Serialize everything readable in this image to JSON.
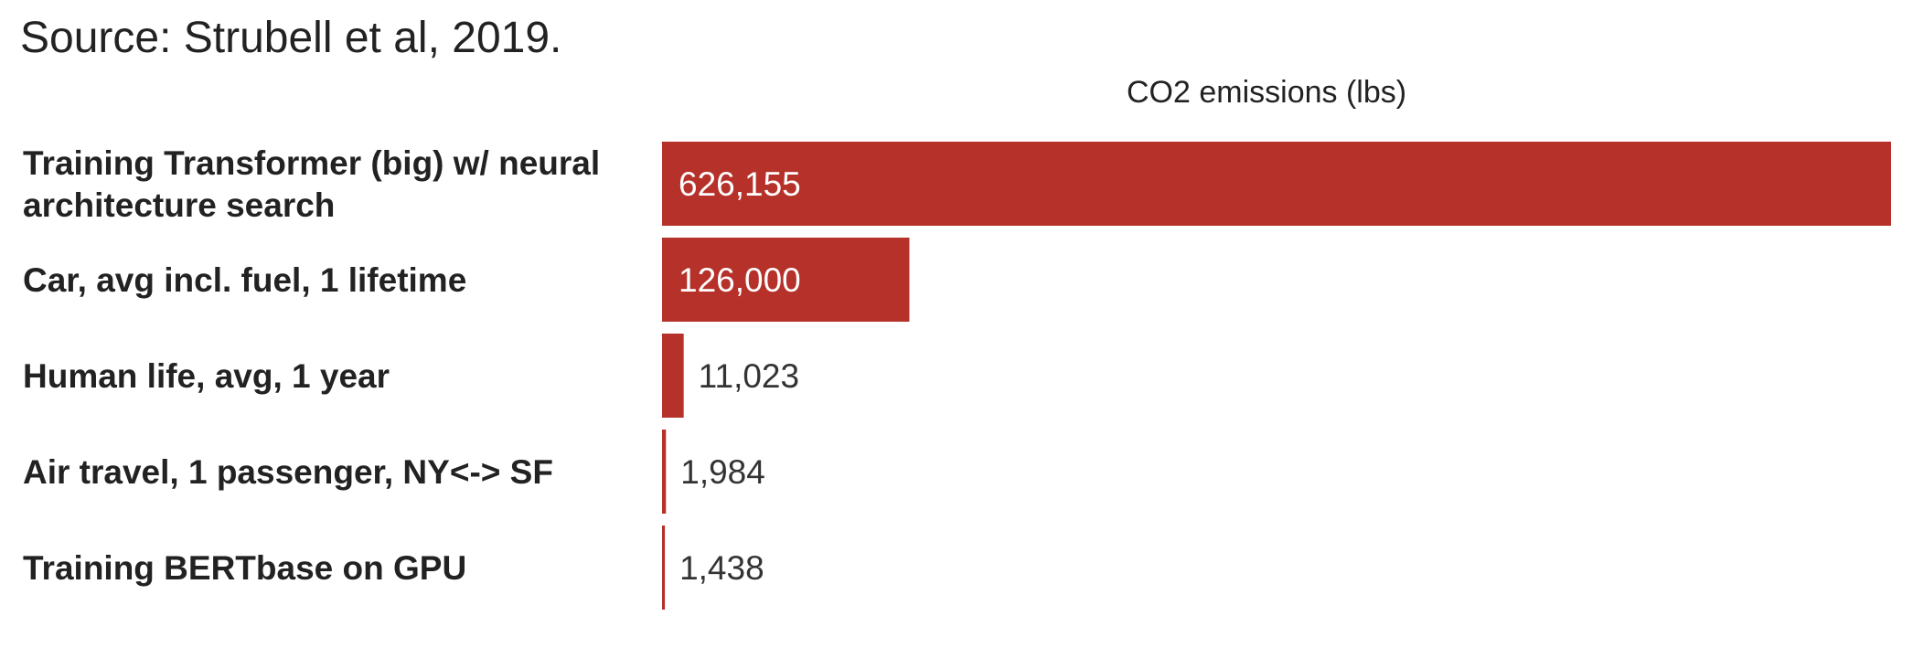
{
  "source": "Source: Strubell et al, 2019.",
  "chart_data": {
    "type": "bar",
    "orientation": "horizontal",
    "title": "",
    "xlabel": "CO2 emissions (lbs)",
    "ylabel": "",
    "xlim": [
      0,
      626155
    ],
    "grid": false,
    "categories": [
      [
        "Training Transformer (big) w/ neural",
        "architecture search"
      ],
      [
        "Car, avg incl. fuel, 1 lifetime"
      ],
      [
        "Human life, avg, 1 year"
      ],
      [
        "Air travel, 1 passenger, NY<-> SF"
      ],
      [
        "Training BERTbase on GPU"
      ]
    ],
    "values": [
      626155,
      126000,
      11023,
      1984,
      1438
    ],
    "value_labels": [
      "626,155",
      "126,000",
      "11,023",
      "1,984",
      "1,438"
    ],
    "colors": {
      "bar": "#b5312a"
    }
  }
}
